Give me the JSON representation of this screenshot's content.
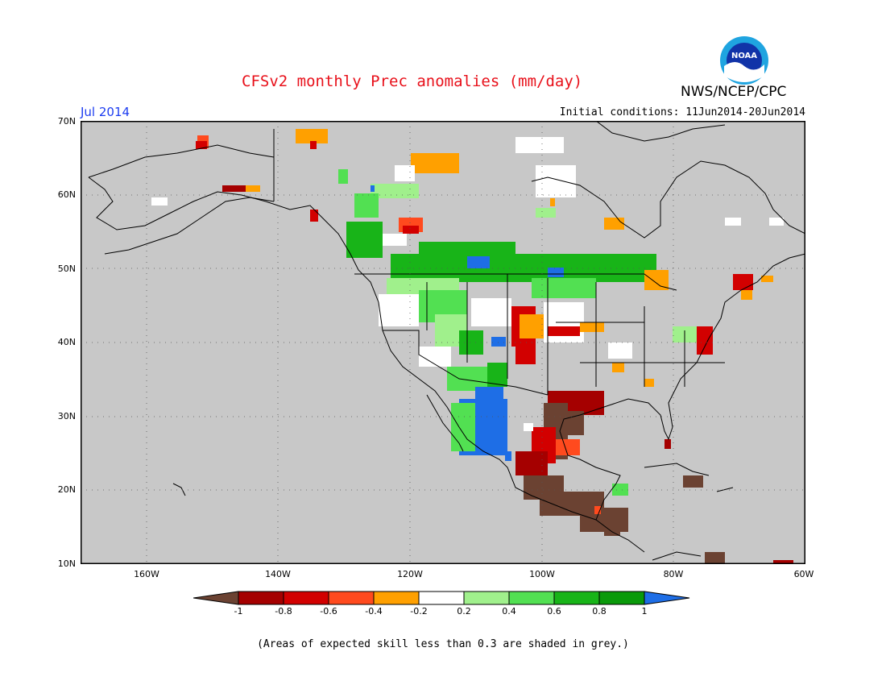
{
  "title": "CFSv2 monthly Prec anomalies (mm/day)",
  "agency": "NWS/NCEP/CPC",
  "logo_text": "NOAA",
  "month": "Jul 2014",
  "initial_conditions": "Initial conditions: 11Jun2014-20Jun2014",
  "lat_labels": [
    "70N",
    "60N",
    "50N",
    "40N",
    "30N",
    "20N",
    "10N"
  ],
  "lon_labels": [
    "160W",
    "140W",
    "120W",
    "100W",
    "80W",
    "60W"
  ],
  "legend": {
    "ticks": [
      "-1",
      "-0.8",
      "-0.6",
      "-0.4",
      "-0.2",
      "0.2",
      "0.4",
      "0.6",
      "0.8",
      "1"
    ],
    "colors": [
      "#6b4232",
      "#a50000",
      "#d20000",
      "#ff4a1e",
      "#ffa000",
      "#ffffff",
      "#a0f08c",
      "#52e052",
      "#18b418",
      "#0a9a0a",
      "#1e6ee6"
    ]
  },
  "note": "(Areas of expected skill less than 0.3 are shaded in grey.)",
  "map_colors": {
    "background": "#c8c8c8",
    "coast": "#000000",
    "grid": "#555555"
  }
}
